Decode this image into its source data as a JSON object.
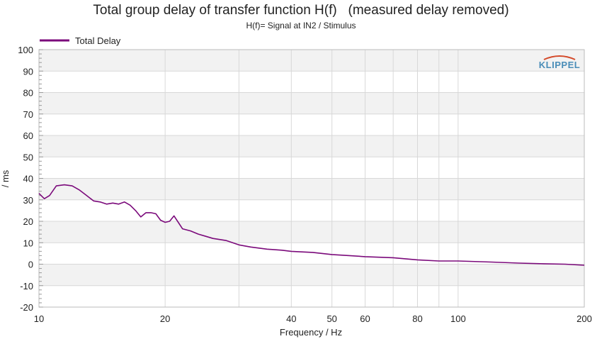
{
  "chart_data": {
    "type": "line",
    "title": "Total group delay of transfer function H(f)   (measured delay removed)",
    "subtitle": "H(f)= Signal at IN2 / Stimulus",
    "xlabel": "Frequency / Hz",
    "ylabel": "/ ms",
    "xscale": "log",
    "xlim": [
      10,
      200
    ],
    "ylim": [
      -20,
      100
    ],
    "x_ticks": [
      10,
      20,
      40,
      50,
      60,
      80,
      100,
      200
    ],
    "y_ticks": [
      -20,
      -10,
      0,
      10,
      20,
      30,
      40,
      50,
      60,
      70,
      80,
      90,
      100
    ],
    "grid": true,
    "legend_position": "top-left",
    "brand": "KLIPPEL",
    "colors": {
      "series": "#7b0a7b",
      "band": "#f2f2f2",
      "grid": "#d8d8d8",
      "logo": "#4a8db8"
    },
    "series": [
      {
        "name": "Total Delay",
        "x": [
          10,
          10.3,
          10.6,
          11.0,
          11.5,
          12.0,
          12.5,
          13.0,
          13.5,
          14.0,
          14.5,
          15.0,
          15.5,
          16.0,
          16.5,
          17.0,
          17.5,
          18.0,
          18.5,
          19.0,
          19.5,
          20.0,
          20.5,
          21.0,
          22.0,
          23.0,
          24.0,
          25.0,
          26.0,
          28.0,
          30.0,
          32.0,
          35.0,
          38.0,
          40.0,
          45.0,
          50.0,
          55.0,
          60.0,
          70.0,
          80.0,
          90.0,
          100.0,
          120.0,
          140.0,
          160.0,
          180.0,
          200.0
        ],
        "y": [
          33,
          30.5,
          32,
          36.5,
          37,
          36.5,
          34.5,
          32,
          29.5,
          29,
          28,
          28.5,
          28,
          29,
          27.5,
          25,
          22,
          24,
          24,
          23.5,
          20.5,
          19.5,
          20,
          22.5,
          16.5,
          15.5,
          14,
          13,
          12,
          11,
          9,
          8,
          7,
          6.5,
          6,
          5.5,
          4.5,
          4,
          3.5,
          3,
          2,
          1.5,
          1.5,
          1,
          0.5,
          0.2,
          0,
          -0.5
        ]
      }
    ]
  }
}
